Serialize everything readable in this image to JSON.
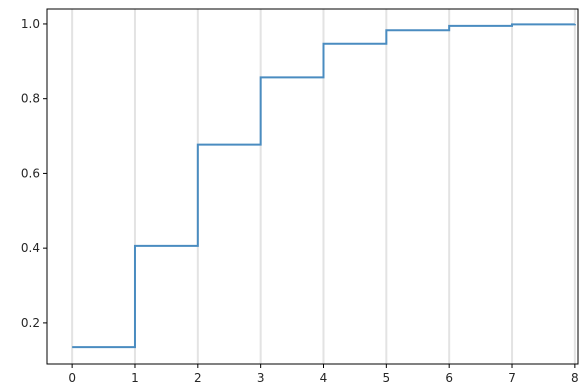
{
  "chart_data": {
    "type": "line",
    "drawstyle": "steps-post",
    "title": "",
    "xlabel": "",
    "ylabel": "",
    "xlim": [
      -0.4,
      8.05
    ],
    "ylim": [
      0.09,
      1.04
    ],
    "grid": {
      "x": true,
      "y": false
    },
    "x_ticks": [
      0,
      1,
      2,
      3,
      4,
      5,
      6,
      7,
      8
    ],
    "x_tick_labels": [
      "0",
      "1",
      "2",
      "3",
      "4",
      "5",
      "6",
      "7",
      "8"
    ],
    "y_ticks": [
      0.2,
      0.4,
      0.6,
      0.8,
      1.0
    ],
    "y_tick_labels": [
      "0.2",
      "0.4",
      "0.6",
      "0.8",
      "1.0"
    ],
    "series": [
      {
        "color": "#4a8cc0",
        "x": [
          0,
          1,
          2,
          3,
          4,
          5,
          6,
          7,
          8
        ],
        "y": [
          0.135,
          0.406,
          0.677,
          0.857,
          0.947,
          0.983,
          0.995,
          0.999,
          1.0
        ]
      }
    ]
  }
}
